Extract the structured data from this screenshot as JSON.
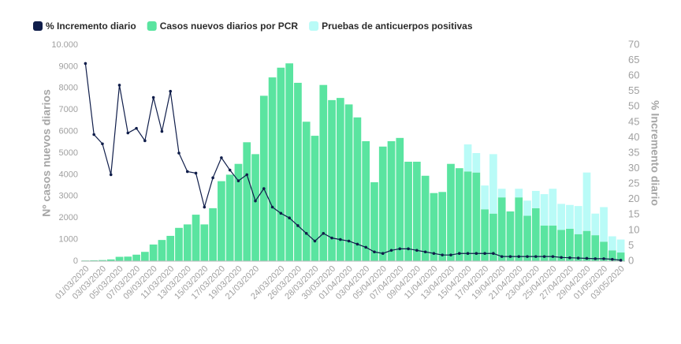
{
  "chart_data": {
    "type": "bar",
    "categories": [
      "01/03/2020",
      null,
      "03/03/2020",
      null,
      "05/03/2020",
      null,
      "07/03/2020",
      null,
      "09/03/2020",
      null,
      "11/03/2020",
      null,
      "13/03/2020",
      null,
      "15/03/2020",
      null,
      "17/03/2020",
      null,
      "19/03/2020",
      null,
      "21/03/2020",
      null,
      null,
      "24/03/2020",
      null,
      "26/03/2020",
      null,
      "28/03/2020",
      null,
      "30/03/2020",
      null,
      "01/04/2020",
      null,
      "03/04/2020",
      null,
      "05/04/2020",
      null,
      "07/04/2020",
      null,
      "09/04/2020",
      null,
      "11/04/2020",
      null,
      "13/04/2020",
      null,
      "15/04/2020",
      null,
      "17/04/2020",
      null,
      "19/04/2020",
      null,
      "21/04/2020",
      null,
      "23/04/2020",
      null,
      "25/04/2020",
      null,
      "27/04/2020",
      null,
      "29/04/2020",
      null,
      "01/05/2020",
      null,
      "03/05/2020"
    ],
    "series": [
      {
        "name": "% Incremento diario",
        "type": "line",
        "axis": "y2",
        "color": "#0f1d4a",
        "values": [
          64,
          41,
          38,
          28,
          57,
          41.5,
          43,
          39,
          53,
          42,
          55,
          35,
          29,
          28.5,
          17.5,
          27,
          33.5,
          29.5,
          26,
          28,
          19.5,
          23.5,
          17.5,
          15.5,
          14,
          11.5,
          9,
          6.5,
          9,
          7.5,
          7,
          6.5,
          5.5,
          4.5,
          3,
          2.5,
          3.5,
          4,
          4,
          3.5,
          3,
          2.5,
          2,
          2,
          2.5,
          2.5,
          2.5,
          2.5,
          2.5,
          1.5,
          1.5,
          1.5,
          1.5,
          1.5,
          1.5,
          1.5,
          1.2,
          1.1,
          1,
          0.9,
          0.8,
          0.8,
          0.6,
          0.3
        ]
      },
      {
        "name": "Casos nuevos diarios por PCR",
        "type": "bar",
        "color": "#5ae4a0",
        "values": [
          30,
          40,
          50,
          80,
          200,
          210,
          300,
          430,
          770,
          980,
          1170,
          1540,
          1700,
          2150,
          1700,
          2450,
          3700,
          4000,
          4500,
          5500,
          4950,
          7650,
          8500,
          8950,
          9150,
          8250,
          6450,
          5800,
          8150,
          7450,
          7550,
          7250,
          6650,
          5550,
          3650,
          5300,
          5550,
          5700,
          4600,
          4600,
          3950,
          3150,
          3200,
          4500,
          4300,
          4150,
          4100,
          2400,
          2200,
          2950,
          2300,
          2950,
          2100,
          2450,
          1650,
          1650,
          1450,
          1500,
          1250,
          1400,
          1200,
          900,
          500,
          400
        ]
      },
      {
        "name": "Pruebas de anticuerpos positivas",
        "type": "bar",
        "color": "#b9fbf7",
        "values": [
          0,
          0,
          0,
          0,
          0,
          0,
          0,
          0,
          0,
          0,
          0,
          0,
          0,
          0,
          0,
          0,
          0,
          0,
          0,
          0,
          0,
          0,
          0,
          0,
          0,
          0,
          0,
          0,
          0,
          0,
          0,
          0,
          0,
          0,
          0,
          0,
          0,
          0,
          0,
          0,
          0,
          0,
          0,
          0,
          0,
          1250,
          900,
          1100,
          2750,
          400,
          0,
          400,
          700,
          800,
          1450,
          1700,
          1200,
          1100,
          1300,
          2700,
          1000,
          1600,
          650,
          600
        ]
      }
    ],
    "y_label": "Nº casos nuevos diarios",
    "y2_label": "% Incremento diario",
    "ylim": [
      0,
      10000
    ],
    "yticks": [
      0,
      1000,
      2000,
      3000,
      4000,
      5000,
      6000,
      7000,
      8000,
      9000,
      {
        "value": 10000,
        "label": "10.000"
      }
    ],
    "y2lim": [
      0,
      70
    ],
    "y2ticks": [
      0,
      5,
      10,
      15,
      20,
      25,
      30,
      35,
      40,
      45,
      50,
      55,
      60,
      65,
      70
    ]
  }
}
